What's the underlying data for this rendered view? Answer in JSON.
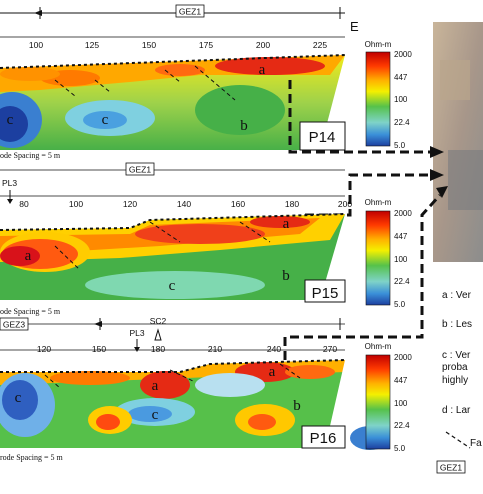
{
  "header": {
    "marker": "GEZ1",
    "direction_label": "E"
  },
  "panels": [
    {
      "id": "P14",
      "ticks": [
        "100",
        "125",
        "150",
        "175",
        "200",
        "225"
      ],
      "unit": "Ohm-m",
      "scale": [
        "2000",
        "447",
        "100",
        "22.4",
        "5.0"
      ],
      "zones": [
        "a",
        "b",
        "c",
        "c"
      ],
      "spacing": "ode Spacing = 5 m",
      "marker": "GEZ1"
    },
    {
      "id": "P15",
      "ticks": [
        "80",
        "100",
        "120",
        "140",
        "160",
        "180",
        "200"
      ],
      "unit": "Ohm-m",
      "scale": [
        "2000",
        "447",
        "100",
        "22.4",
        "5.0"
      ],
      "zones": [
        "a",
        "a",
        "b",
        "c"
      ],
      "spacing": "ode Spacing = 5 m",
      "marker_left": "PL3",
      "markers": [
        "GEZ3",
        "PL3",
        "SC2"
      ]
    },
    {
      "id": "P16",
      "ticks": [
        "120",
        "150",
        "180",
        "210",
        "240",
        "270"
      ],
      "unit": "Ohm-m",
      "scale": [
        "2000",
        "447",
        "100",
        "22.4",
        "5.0"
      ],
      "zones": [
        "a",
        "a",
        "b",
        "c",
        "c"
      ],
      "spacing": "rode Spacing = 5 m"
    }
  ],
  "legend": {
    "items": [
      "a : Ver",
      "b : Les",
      "c : Ver",
      "proba",
      "highly",
      "d : Lar",
      "Fa"
    ],
    "bottom_marker": "GEZ1"
  },
  "colors": {
    "high": "#d7191c",
    "mid_high": "#fdae61",
    "mid": "#66bd63",
    "low": "#2166ac"
  }
}
